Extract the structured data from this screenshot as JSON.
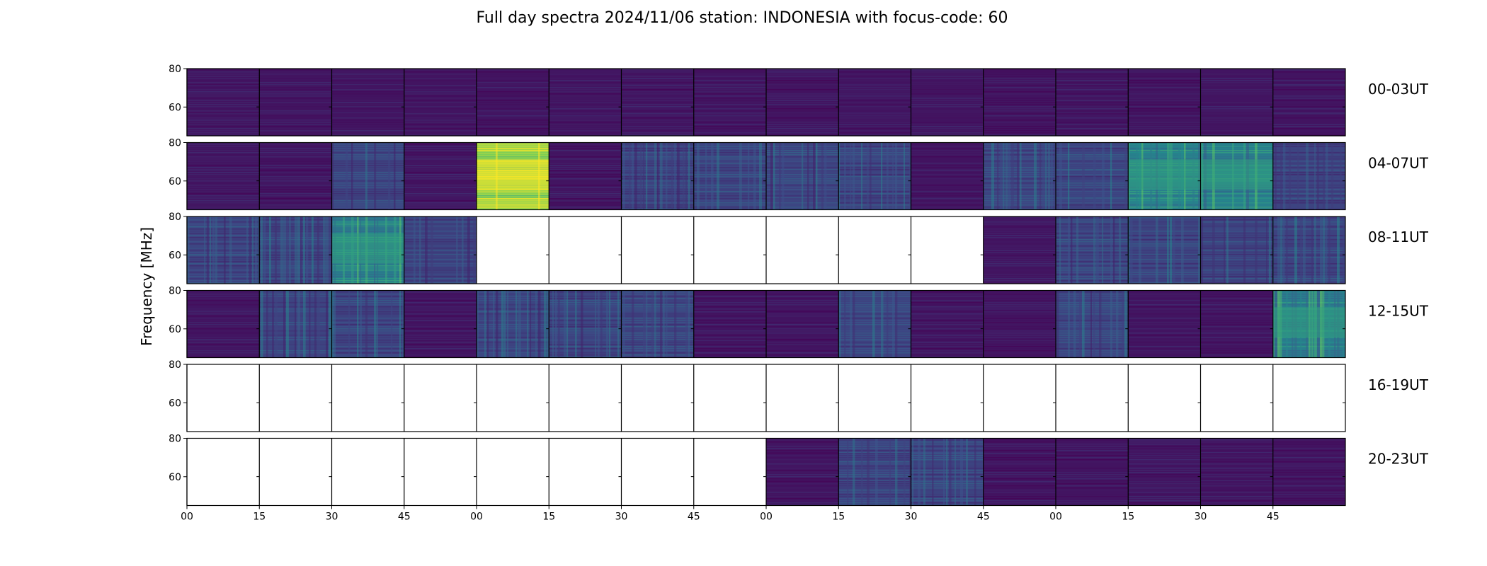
{
  "chart_data": {
    "type": "heatmap",
    "title": "Full day spectra 2024/11/06 station: INDONESIA with focus-code: 60",
    "ylabel": "Frequency [MHz]",
    "ylim": [
      45,
      80
    ],
    "y_ticks": [
      "60",
      "80"
    ],
    "x_tick_labels": [
      "00",
      "15",
      "30",
      "45",
      "00",
      "15",
      "30",
      "45",
      "00",
      "15",
      "30",
      "45",
      "00",
      "15",
      "30",
      "45"
    ],
    "row_labels": [
      "00-03UT",
      "04-07UT",
      "08-11UT",
      "12-15UT",
      "16-19UT",
      "20-23UT"
    ],
    "panels_per_row": 16,
    "colormap": [
      "#440154",
      "#3b528b",
      "#21918c",
      "#5ec962",
      "#fde725"
    ],
    "activity": [
      [
        "low",
        "low",
        "low",
        "low",
        "low",
        "low",
        "low",
        "low",
        "low",
        "low",
        "low",
        "low",
        "low",
        "low",
        "low",
        "low"
      ],
      [
        "low",
        "low",
        "moderate",
        "low",
        "very high",
        "low",
        "moderate",
        "moderate",
        "moderate",
        "moderate",
        "low",
        "moderate",
        "moderate",
        "high",
        "high",
        "moderate"
      ],
      [
        "moderate",
        "moderate",
        "high",
        "moderate",
        "no data",
        "no data",
        "no data",
        "no data",
        "no data",
        "no data",
        "no data",
        "low",
        "moderate",
        "moderate",
        "moderate",
        "moderate"
      ],
      [
        "low",
        "moderate",
        "moderate",
        "low",
        "moderate",
        "moderate",
        "moderate",
        "low",
        "low",
        "moderate",
        "low",
        "low",
        "moderate",
        "low",
        "low",
        "high"
      ],
      [
        "no data",
        "no data",
        "no data",
        "no data",
        "no data",
        "no data",
        "no data",
        "no data",
        "no data",
        "no data",
        "no data",
        "no data",
        "no data",
        "no data",
        "no data",
        "no data"
      ],
      [
        "no data",
        "no data",
        "no data",
        "no data",
        "no data",
        "no data",
        "no data",
        "no data",
        "low",
        "moderate",
        "moderate",
        "low",
        "low",
        "low",
        "low",
        "low"
      ]
    ]
  }
}
